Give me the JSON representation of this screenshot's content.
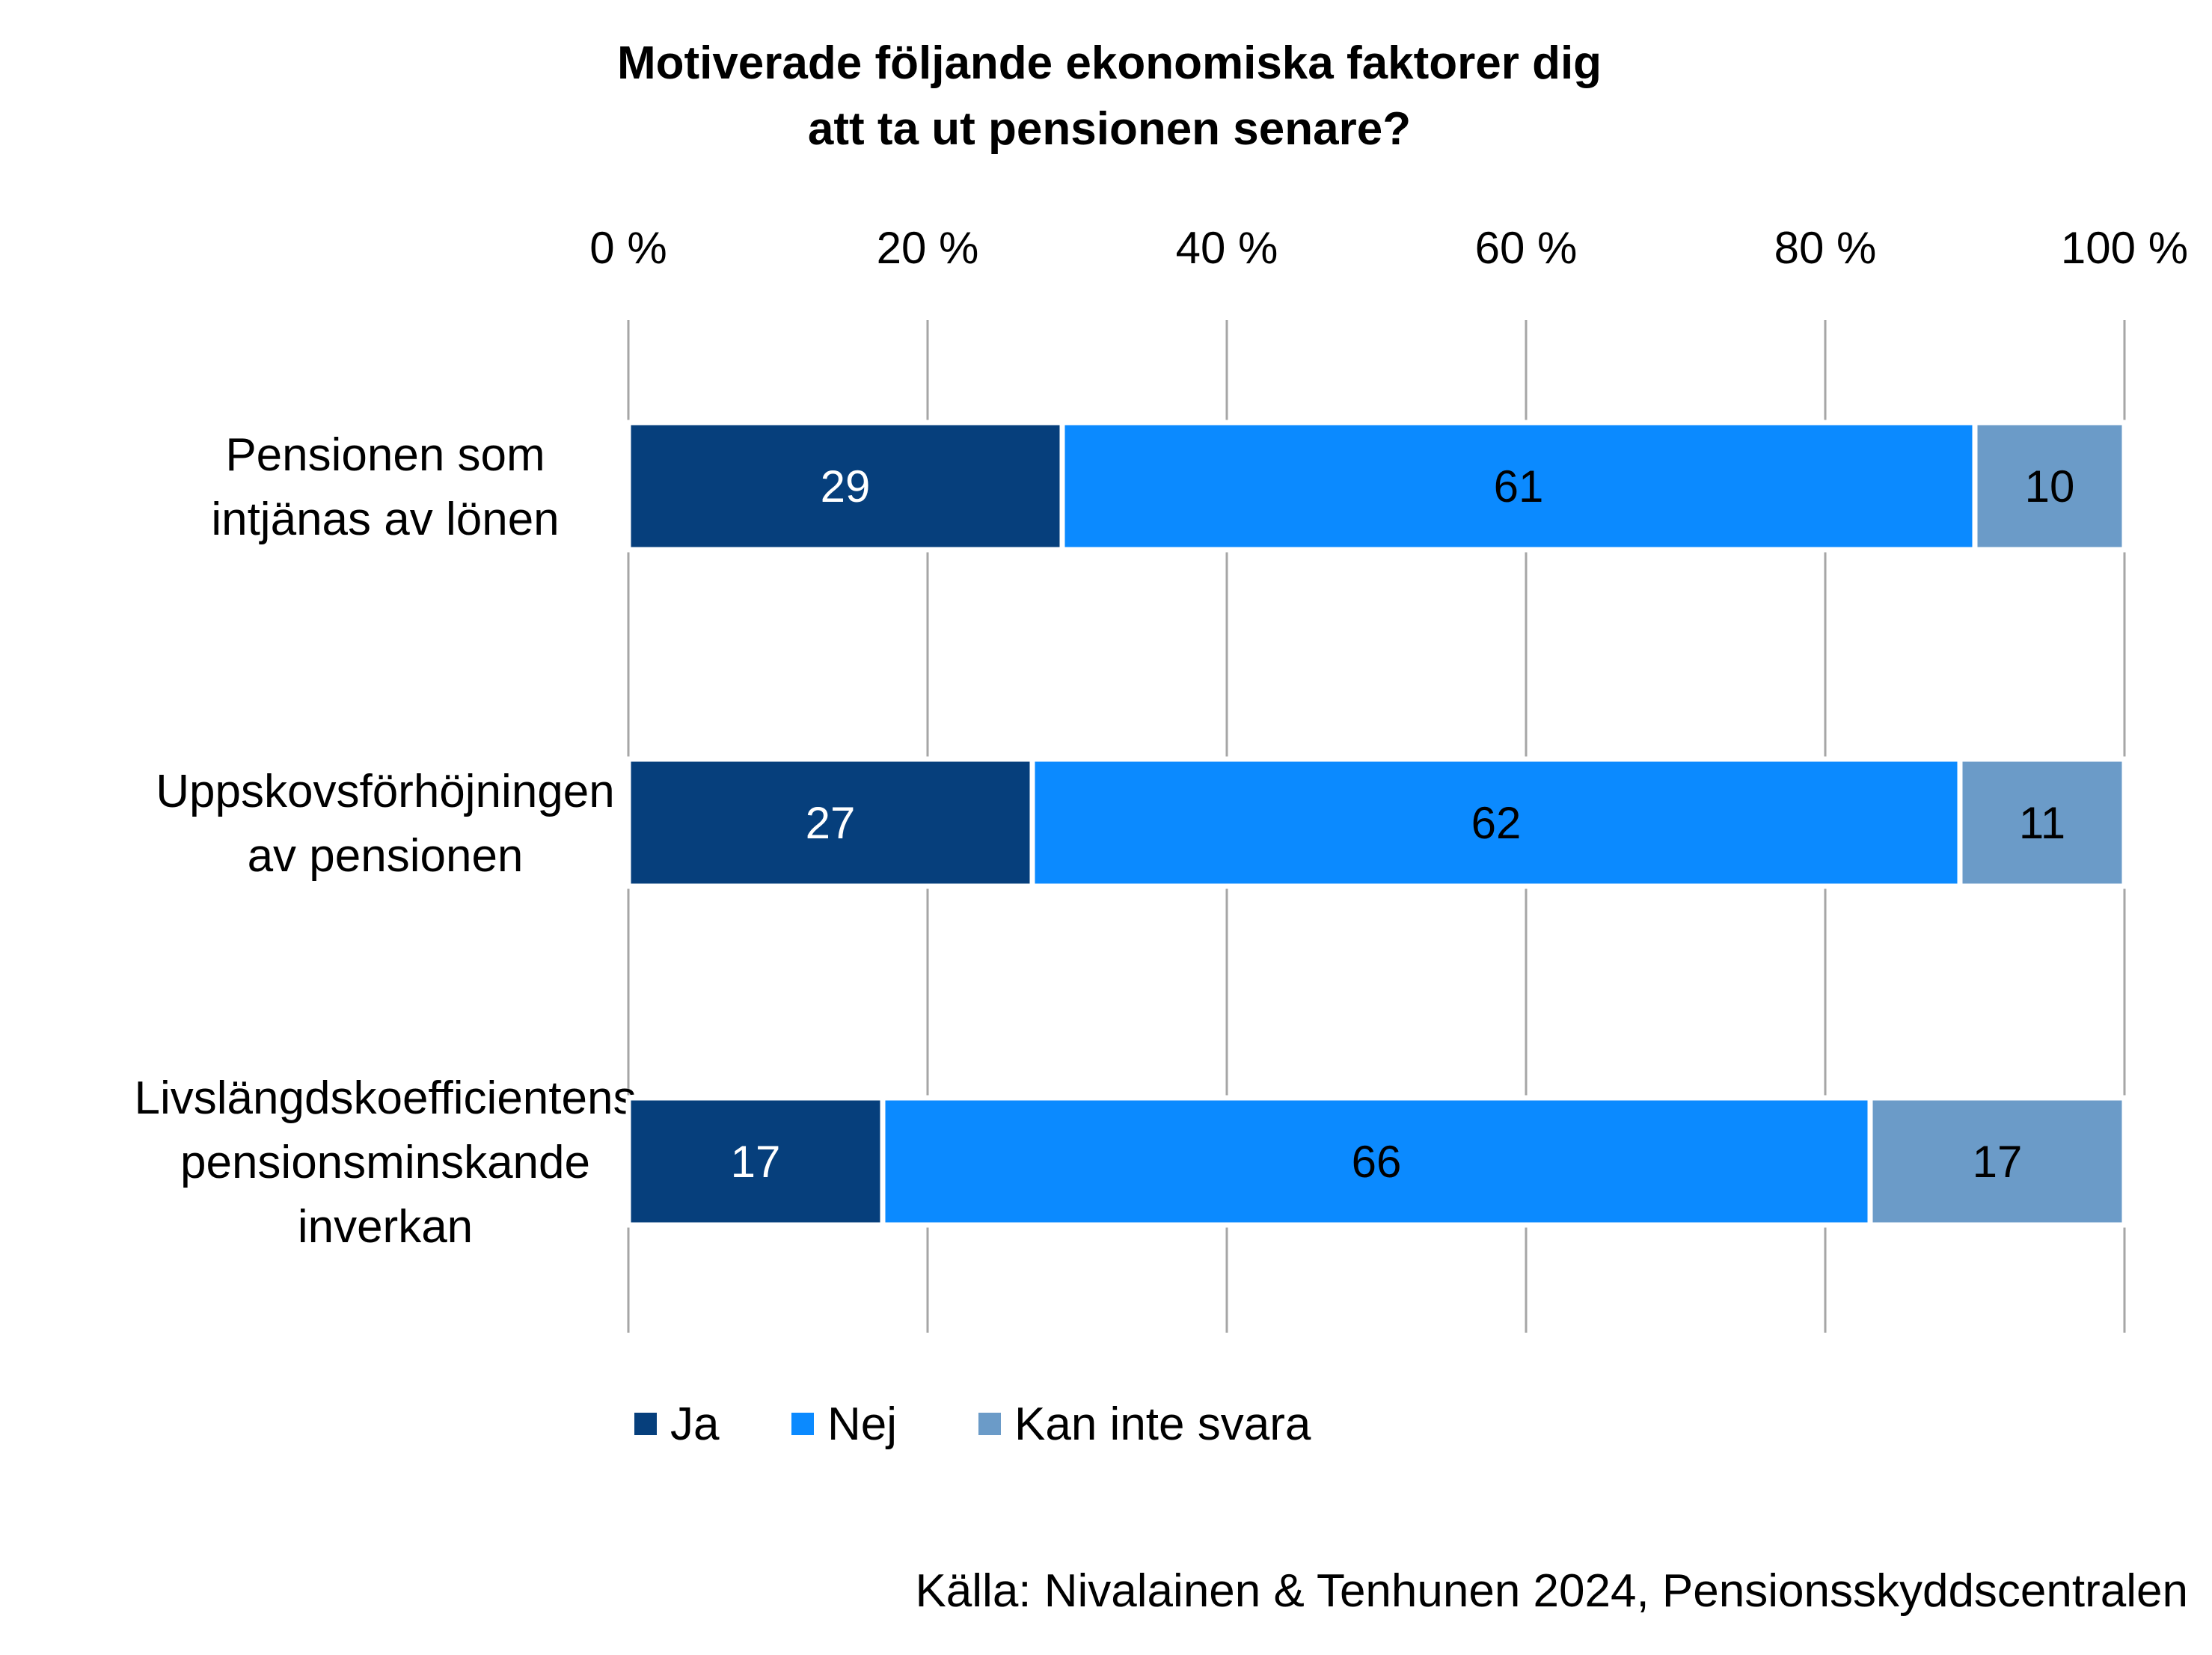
{
  "chart_data": {
    "type": "bar",
    "orientation": "horizontal",
    "stacked": true,
    "title_lines": [
      "Motiverade följande ekonomiska faktorer dig",
      "att ta ut pensionen senare?"
    ],
    "xlim": [
      0,
      100
    ],
    "tick_values": [
      0,
      20,
      40,
      60,
      80,
      100
    ],
    "tick_labels": [
      "0 %",
      "20 %",
      "40 %",
      "60 %",
      "80 %",
      "100 %"
    ],
    "grid": true,
    "legend_position": "bottom",
    "categories": [
      [
        "Pensionen som",
        "intjänas av lönen"
      ],
      [
        "Uppskovsförhöjningen",
        "av pensionen"
      ],
      [
        "Livslängdskoefficientens",
        "pensionsminskande",
        "inverkan"
      ]
    ],
    "series": [
      {
        "name": "Ja",
        "color": "#063f7c",
        "label_color": "#ffffff",
        "values": [
          29,
          27,
          17
        ]
      },
      {
        "name": "Nej",
        "color": "#0b8aff",
        "label_color": "#000000",
        "values": [
          61,
          62,
          66
        ]
      },
      {
        "name": "Kan inte svara",
        "color": "#6b9bc8",
        "label_color": "#000000",
        "values": [
          10,
          11,
          17
        ]
      }
    ]
  },
  "source": "Källa: Nivalainen & Tenhunen 2024, Pensionsskyddscentralen"
}
